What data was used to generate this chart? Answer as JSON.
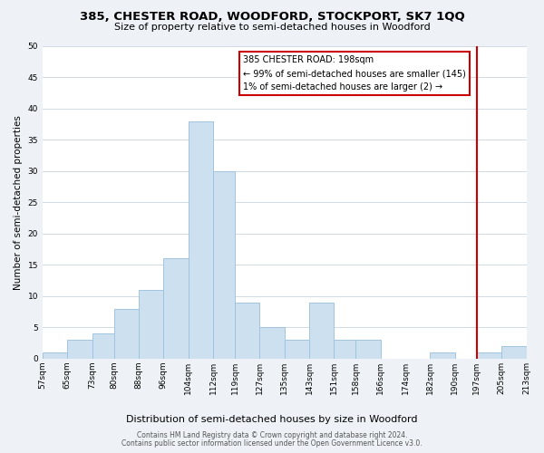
{
  "title": "385, CHESTER ROAD, WOODFORD, STOCKPORT, SK7 1QQ",
  "subtitle": "Size of property relative to semi-detached houses in Woodford",
  "xlabel": "Distribution of semi-detached houses by size in Woodford",
  "ylabel": "Number of semi-detached properties",
  "bin_labels": [
    "57sqm",
    "65sqm",
    "73sqm",
    "80sqm",
    "88sqm",
    "96sqm",
    "104sqm",
    "112sqm",
    "119sqm",
    "127sqm",
    "135sqm",
    "143sqm",
    "151sqm",
    "158sqm",
    "166sqm",
    "174sqm",
    "182sqm",
    "190sqm",
    "197sqm",
    "205sqm",
    "213sqm"
  ],
  "bin_edges": [
    57,
    65,
    73,
    80,
    88,
    96,
    104,
    112,
    119,
    127,
    135,
    143,
    151,
    158,
    166,
    174,
    182,
    190,
    197,
    205,
    213
  ],
  "counts": [
    1,
    3,
    4,
    8,
    11,
    16,
    38,
    30,
    9,
    5,
    3,
    9,
    3,
    3,
    0,
    0,
    1,
    0,
    1,
    2
  ],
  "bar_color": "#cce0f0",
  "bar_edge_color": "#a0c4e0",
  "vline_x": 197,
  "vline_color": "#cc0000",
  "annotation_title": "385 CHESTER ROAD: 198sqm",
  "annotation_line1": "← 99% of semi-detached houses are smaller (145)",
  "annotation_line2": "1% of semi-detached houses are larger (2) →",
  "annotation_box_color": "#ffffff",
  "annotation_box_edge": "#cc0000",
  "ylim": [
    0,
    50
  ],
  "yticks": [
    0,
    5,
    10,
    15,
    20,
    25,
    30,
    35,
    40,
    45,
    50
  ],
  "footer1": "Contains HM Land Registry data © Crown copyright and database right 2024.",
  "footer2": "Contains public sector information licensed under the Open Government Licence v3.0.",
  "background_color": "#eef2f7",
  "plot_bg_color": "#ffffff",
  "title_fontsize": 9.5,
  "subtitle_fontsize": 8,
  "ylabel_fontsize": 7.5,
  "xlabel_fontsize": 8,
  "tick_fontsize": 6.5,
  "footer_fontsize": 5.5
}
